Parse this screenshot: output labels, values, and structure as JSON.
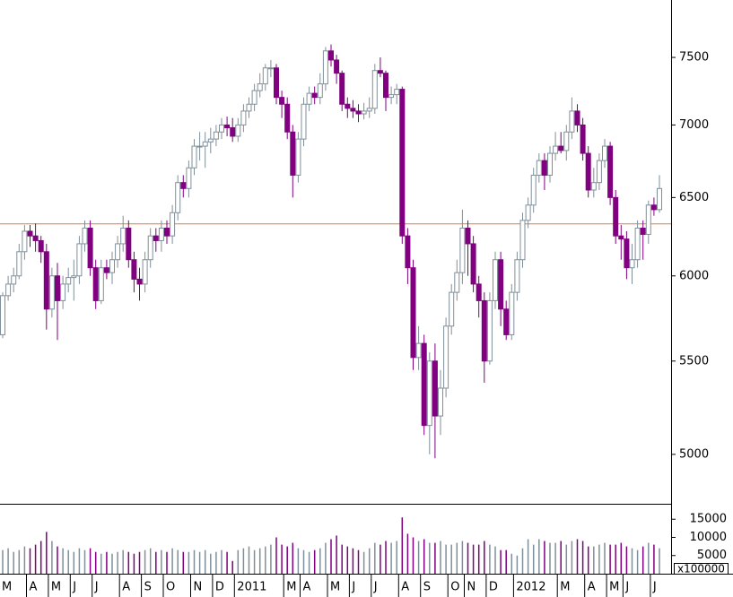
{
  "chart_data": [
    {
      "type": "candlestick",
      "categories": [
        "M",
        null,
        null,
        null,
        null,
        "A",
        null,
        null,
        null,
        "M",
        null,
        null,
        null,
        "J",
        null,
        null,
        null,
        "J",
        null,
        null,
        null,
        null,
        "A",
        null,
        null,
        null,
        "S",
        null,
        null,
        null,
        "O",
        null,
        null,
        null,
        null,
        "N",
        null,
        null,
        null,
        "D",
        null,
        null,
        null,
        "2011",
        null,
        null,
        null,
        null,
        null,
        null,
        null,
        null,
        "M",
        null,
        null,
        "A",
        null,
        null,
        null,
        null,
        "M",
        null,
        null,
        null,
        "J",
        null,
        null,
        null,
        "J",
        null,
        null,
        null,
        null,
        "A",
        null,
        null,
        null,
        "S",
        null,
        null,
        null,
        null,
        "O",
        null,
        null,
        "N",
        null,
        null,
        null,
        "D",
        null,
        null,
        null,
        null,
        "2012",
        null,
        null,
        null,
        null,
        null,
        null,
        null,
        "M",
        null,
        null,
        null,
        null,
        "A",
        null,
        null,
        null,
        "M",
        null,
        null,
        "J",
        null,
        null,
        null,
        null,
        "J",
        null
      ],
      "open": [
        5650,
        5880,
        5950,
        6000,
        6150,
        6280,
        6250,
        6220,
        6150,
        5800,
        6000,
        5850,
        5950,
        5990,
        6000,
        6200,
        6300,
        6050,
        5850,
        6050,
        6020,
        6100,
        6200,
        6300,
        6100,
        5980,
        5950,
        6100,
        6250,
        6220,
        6300,
        6250,
        6400,
        6600,
        6560,
        6700,
        6850,
        6850,
        6880,
        6900,
        6950,
        7000,
        6980,
        6920,
        7000,
        7100,
        7150,
        7250,
        7300,
        7420,
        7420,
        7200,
        7150,
        6950,
        6650,
        6900,
        7150,
        7230,
        7200,
        7300,
        7550,
        7480,
        7380,
        7150,
        7120,
        7100,
        7080,
        7100,
        7120,
        7400,
        7380,
        7200,
        7220,
        7260,
        6250,
        6050,
        5520,
        5600,
        5150,
        5500,
        5200,
        5350,
        5700,
        5900,
        6020,
        6300,
        6200,
        5950,
        5850,
        5500,
        5850,
        6100,
        5800,
        5650,
        5900,
        6100,
        6350,
        6450,
        6650,
        6750,
        6650,
        6800,
        6850,
        6820,
        6950,
        7100,
        7000,
        6800,
        6550,
        6600,
        6750,
        6850,
        6500,
        6250,
        6230,
        6050,
        6100,
        6300,
        6260,
        6450,
        6420
      ],
      "high": [
        5900,
        6000,
        6050,
        6200,
        6320,
        6320,
        6330,
        6250,
        6200,
        6050,
        6080,
        6000,
        6050,
        6100,
        6250,
        6350,
        6350,
        6100,
        6100,
        6100,
        6150,
        6250,
        6380,
        6350,
        6150,
        6050,
        6150,
        6300,
        6300,
        6350,
        6350,
        6450,
        6650,
        6650,
        6750,
        6900,
        6950,
        6950,
        6980,
        7000,
        7050,
        7060,
        7050,
        7050,
        7150,
        7200,
        7300,
        7380,
        7450,
        7480,
        7450,
        7250,
        7200,
        7000,
        6950,
        7200,
        7280,
        7280,
        7380,
        7580,
        7600,
        7520,
        7400,
        7200,
        7180,
        7150,
        7160,
        7200,
        7450,
        7500,
        7400,
        7280,
        7300,
        7280,
        6300,
        6100,
        5700,
        5650,
        5550,
        5600,
        5450,
        5750,
        5950,
        6100,
        6420,
        6350,
        6250,
        6000,
        5900,
        5900,
        6150,
        6150,
        5850,
        5950,
        6150,
        6400,
        6500,
        6700,
        6800,
        6800,
        6850,
        6950,
        6950,
        7000,
        7200,
        7150,
        7050,
        6850,
        6700,
        6800,
        6900,
        6880,
        6550,
        6320,
        6280,
        6200,
        6350,
        6350,
        6480,
        6500,
        6650
      ],
      "low": [
        5630,
        5850,
        5900,
        5980,
        6100,
        6180,
        6150,
        6080,
        5680,
        5750,
        5620,
        5800,
        5900,
        5850,
        5950,
        6150,
        6000,
        5800,
        5830,
        5980,
        5950,
        6050,
        6150,
        6050,
        5900,
        5850,
        5900,
        6050,
        6150,
        6150,
        6200,
        6200,
        6350,
        6500,
        6500,
        6650,
        6750,
        6700,
        6800,
        6850,
        6900,
        6920,
        6880,
        6880,
        6950,
        7050,
        7100,
        7200,
        7250,
        7350,
        7150,
        7050,
        6900,
        6500,
        6600,
        6850,
        7100,
        7150,
        7150,
        7250,
        7430,
        7300,
        7100,
        7050,
        7050,
        7020,
        7040,
        7050,
        7080,
        7350,
        7100,
        7150,
        7150,
        6200,
        5950,
        5450,
        5450,
        5100,
        5000,
        4980,
        5100,
        5300,
        5650,
        5850,
        5950,
        6000,
        5900,
        5750,
        5380,
        5480,
        5800,
        5700,
        5620,
        5620,
        5850,
        6050,
        6300,
        6400,
        6600,
        6550,
        6600,
        6750,
        6800,
        6750,
        6900,
        6950,
        6750,
        6500,
        6500,
        6550,
        6700,
        6450,
        6200,
        6100,
        5980,
        5950,
        6050,
        6100,
        6200,
        6380,
        6400
      ],
      "close": [
        5880,
        5950,
        6000,
        6150,
        6280,
        6250,
        6220,
        6150,
        5800,
        6000,
        5850,
        5950,
        5990,
        6000,
        6200,
        6300,
        6050,
        5850,
        6050,
        6020,
        6100,
        6200,
        6300,
        6100,
        5980,
        5950,
        6100,
        6250,
        6220,
        6300,
        6250,
        6400,
        6600,
        6560,
        6700,
        6850,
        6850,
        6880,
        6900,
        6950,
        7000,
        6980,
        6920,
        7000,
        7100,
        7150,
        7250,
        7300,
        7420,
        7420,
        7200,
        7150,
        6950,
        6650,
        6900,
        7150,
        7230,
        7200,
        7300,
        7550,
        7480,
        7380,
        7150,
        7120,
        7100,
        7080,
        7100,
        7120,
        7400,
        7380,
        7200,
        7220,
        7260,
        6250,
        6050,
        5520,
        5600,
        5150,
        5500,
        5200,
        5350,
        5700,
        5900,
        6020,
        6300,
        6200,
        5950,
        5850,
        5500,
        5850,
        6100,
        5800,
        5650,
        5900,
        6100,
        6350,
        6450,
        6650,
        6750,
        6650,
        6800,
        6850,
        6820,
        6950,
        7100,
        7000,
        6800,
        6550,
        6600,
        6750,
        6850,
        6500,
        6250,
        6230,
        6050,
        6100,
        6300,
        6260,
        6450,
        6420,
        6560
      ],
      "up_color": "#7f8f9a",
      "down_color": "#800080",
      "log_scale": true,
      "ylim": [
        4754,
        7953
      ],
      "yticks": [
        5000,
        5500,
        6000,
        6500,
        7000,
        7500
      ],
      "reference_line": {
        "value": 6327,
        "color": "#e07a3a"
      }
    },
    {
      "type": "bar",
      "values": [
        6500,
        7000,
        6000,
        6500,
        7500,
        7000,
        8000,
        9000,
        11500,
        9000,
        7500,
        7000,
        6500,
        6000,
        7000,
        6500,
        7000,
        6000,
        5500,
        6000,
        5500,
        6000,
        6500,
        6000,
        5500,
        6000,
        6500,
        7000,
        6000,
        6500,
        6000,
        7000,
        6500,
        6000,
        6000,
        6500,
        6000,
        6500,
        5500,
        6000,
        6500,
        6000,
        3500,
        6500,
        7000,
        7500,
        6500,
        7000,
        7500,
        8000,
        10000,
        8000,
        7500,
        8500,
        7000,
        6500,
        6000,
        6500,
        7000,
        8500,
        9500,
        10500,
        8000,
        7500,
        7000,
        6500,
        6000,
        7000,
        8500,
        8000,
        9000,
        8500,
        9000,
        15500,
        11000,
        10000,
        9000,
        9500,
        8500,
        8500,
        9000,
        8000,
        8000,
        8500,
        9000,
        8500,
        8000,
        8000,
        9000,
        8000,
        7500,
        6500,
        6500,
        5500,
        5000,
        7000,
        9500,
        8000,
        9500,
        9000,
        8500,
        8500,
        9000,
        8000,
        9000,
        9500,
        9000,
        7500,
        7500,
        8000,
        8500,
        8000,
        8000,
        8500,
        7500,
        7000,
        6500,
        7500,
        8500,
        8000,
        7000
      ],
      "ylim": [
        0,
        19250
      ],
      "yticks": [
        5000,
        10000,
        15000
      ],
      "axis_label": "x100000"
    }
  ]
}
